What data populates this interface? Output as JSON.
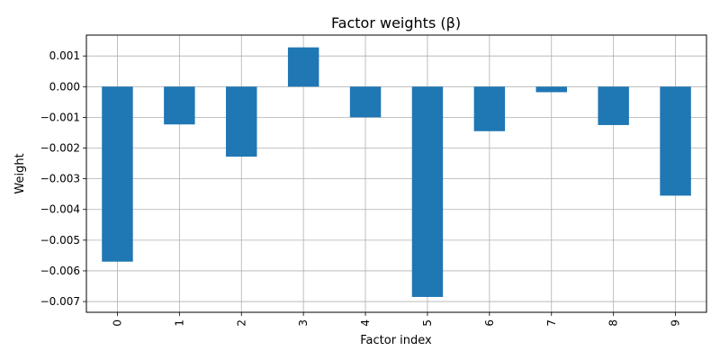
{
  "chart_data": {
    "type": "bar",
    "title": "Factor weights (β)",
    "xlabel": "Factor index",
    "ylabel": "Weight",
    "categories": [
      "0",
      "1",
      "2",
      "3",
      "4",
      "5",
      "6",
      "7",
      "8",
      "9"
    ],
    "values": [
      -0.0057,
      -0.00123,
      -0.00228,
      0.00128,
      -0.001,
      -0.00685,
      -0.00145,
      -0.00018,
      -0.00125,
      -0.00355
    ],
    "ylim": [
      -0.00735,
      0.00168
    ],
    "yticks": [
      0.001,
      0.0,
      -0.001,
      -0.002,
      -0.003,
      -0.004,
      -0.005,
      -0.006,
      -0.007
    ],
    "ytick_labels": [
      "0.001",
      "0.000",
      "−0.001",
      "−0.002",
      "−0.003",
      "−0.004",
      "−0.005",
      "−0.006",
      "−0.007"
    ],
    "grid": true,
    "bar_color": "#1f77b4",
    "grid_color": "#b0b0b0",
    "xtick_rotation": "vertical"
  }
}
